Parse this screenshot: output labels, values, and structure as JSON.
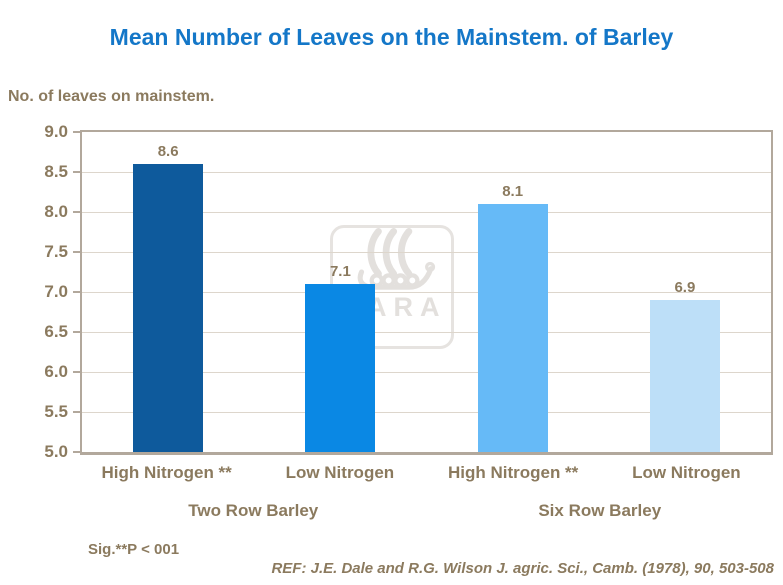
{
  "title": "Mean Number of Leaves on the Mainstem. of Barley",
  "axis_title": "No. of leaves on mainstem.",
  "watermark_text": "YARA",
  "footnote": "Sig.**P < 001",
  "reference": "REF: J.E. Dale and R.G. Wilson J. agric. Sci., Camb. (1978), 90, 503-508",
  "chart_data": {
    "type": "bar",
    "title": "Mean Number of Leaves on the Mainstem. of Barley",
    "ylabel": "No. of leaves on mainstem.",
    "categories": [
      "High Nitrogen **",
      "Low Nitrogen",
      "High Nitrogen **",
      "Low Nitrogen"
    ],
    "groups": [
      "Two Row Barley",
      "Six Row Barley"
    ],
    "values": [
      8.6,
      7.1,
      8.1,
      6.9
    ],
    "value_labels": [
      "8.6",
      "7.1",
      "8.1",
      "6.9"
    ],
    "bar_colors": [
      "#0E5A9C",
      "#0A88E4",
      "#66BAF7",
      "#BDDFF8"
    ],
    "ylim": [
      5.0,
      9.0
    ],
    "ytick_step": 0.5,
    "yticks": [
      "9.0",
      "8.5",
      "8.0",
      "7.5",
      "7.0",
      "6.5",
      "6.0",
      "5.5",
      "5.0"
    ],
    "grid": true,
    "legend_position": "none"
  },
  "colors": {
    "title_blue": "#1477C8",
    "text_brown": "#8B7A5E",
    "axis_border": "#B2A89C",
    "gridline": "#DDD6CC",
    "watermark_gray": "#E3E0DD"
  }
}
